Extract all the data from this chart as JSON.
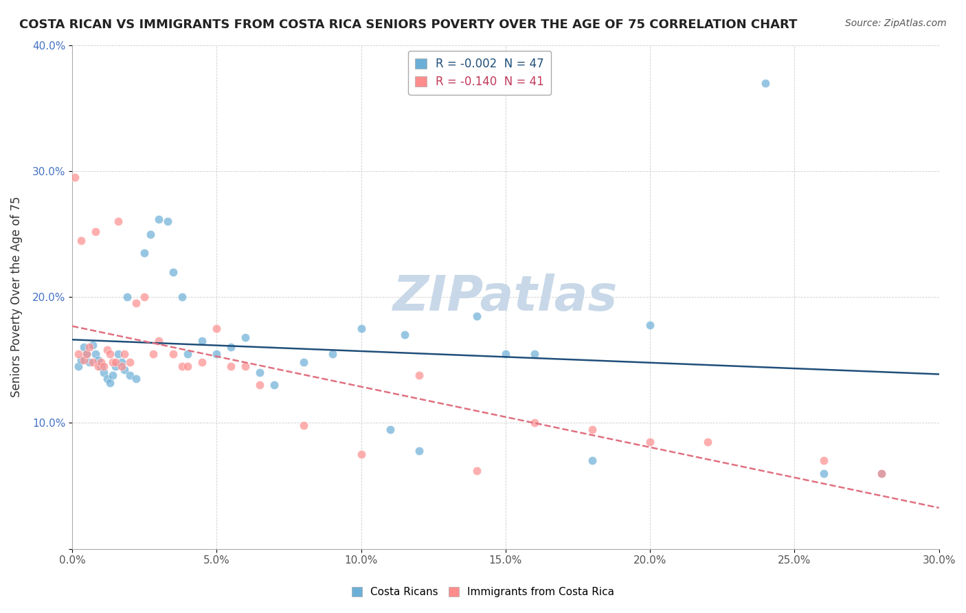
{
  "title": "COSTA RICAN VS IMMIGRANTS FROM COSTA RICA SENIORS POVERTY OVER THE AGE OF 75 CORRELATION CHART",
  "source": "Source: ZipAtlas.com",
  "ylabel": "Seniors Poverty Over the Age of 75",
  "xlabel": "",
  "xlim": [
    0.0,
    0.3
  ],
  "ylim": [
    0.0,
    0.4
  ],
  "xticks": [
    0.0,
    0.05,
    0.1,
    0.15,
    0.2,
    0.25,
    0.3
  ],
  "yticks": [
    0.0,
    0.1,
    0.2,
    0.3,
    0.4
  ],
  "xtick_labels": [
    "0.0%",
    "5.0%",
    "10.0%",
    "15.0%",
    "20.0%",
    "25.0%",
    "30.0%"
  ],
  "ytick_labels": [
    "",
    "10.0%",
    "20.0%",
    "30.0%",
    "40.0%"
  ],
  "blue_R": "-0.002",
  "blue_N": "47",
  "pink_R": "-0.140",
  "pink_N": "41",
  "blue_color": "#6baed6",
  "pink_color": "#fd8d8d",
  "blue_line_color": "#1f4e79",
  "pink_line_color": "#e07080",
  "watermark": "ZIPatlas",
  "watermark_color": "#c8d8e8",
  "legend_label_blue": "Costa Ricans",
  "legend_label_pink": "Immigrants from Costa Rica",
  "blue_scatter_x": [
    0.002,
    0.003,
    0.004,
    0.005,
    0.006,
    0.007,
    0.008,
    0.009,
    0.01,
    0.011,
    0.012,
    0.013,
    0.014,
    0.015,
    0.016,
    0.017,
    0.018,
    0.019,
    0.02,
    0.022,
    0.025,
    0.027,
    0.03,
    0.033,
    0.035,
    0.038,
    0.04,
    0.045,
    0.05,
    0.055,
    0.06,
    0.065,
    0.07,
    0.08,
    0.09,
    0.1,
    0.11,
    0.115,
    0.12,
    0.14,
    0.15,
    0.16,
    0.18,
    0.2,
    0.24,
    0.26,
    0.28
  ],
  "blue_scatter_y": [
    0.145,
    0.15,
    0.16,
    0.155,
    0.148,
    0.162,
    0.155,
    0.15,
    0.145,
    0.14,
    0.135,
    0.132,
    0.138,
    0.145,
    0.155,
    0.148,
    0.142,
    0.2,
    0.138,
    0.135,
    0.235,
    0.25,
    0.262,
    0.26,
    0.22,
    0.2,
    0.155,
    0.165,
    0.155,
    0.16,
    0.168,
    0.14,
    0.13,
    0.148,
    0.155,
    0.175,
    0.095,
    0.17,
    0.078,
    0.185,
    0.155,
    0.155,
    0.07,
    0.178,
    0.37,
    0.06,
    0.06
  ],
  "pink_scatter_x": [
    0.001,
    0.002,
    0.003,
    0.004,
    0.005,
    0.006,
    0.007,
    0.008,
    0.009,
    0.01,
    0.011,
    0.012,
    0.013,
    0.014,
    0.015,
    0.016,
    0.017,
    0.018,
    0.02,
    0.022,
    0.025,
    0.028,
    0.03,
    0.035,
    0.038,
    0.04,
    0.045,
    0.05,
    0.055,
    0.06,
    0.065,
    0.08,
    0.1,
    0.12,
    0.14,
    0.16,
    0.18,
    0.2,
    0.22,
    0.26,
    0.28
  ],
  "pink_scatter_y": [
    0.295,
    0.155,
    0.245,
    0.15,
    0.155,
    0.16,
    0.148,
    0.252,
    0.145,
    0.148,
    0.145,
    0.158,
    0.155,
    0.148,
    0.148,
    0.26,
    0.145,
    0.155,
    0.148,
    0.195,
    0.2,
    0.155,
    0.165,
    0.155,
    0.145,
    0.145,
    0.148,
    0.175,
    0.145,
    0.145,
    0.13,
    0.098,
    0.075,
    0.138,
    0.062,
    0.1,
    0.095,
    0.085,
    0.085,
    0.07,
    0.06
  ]
}
